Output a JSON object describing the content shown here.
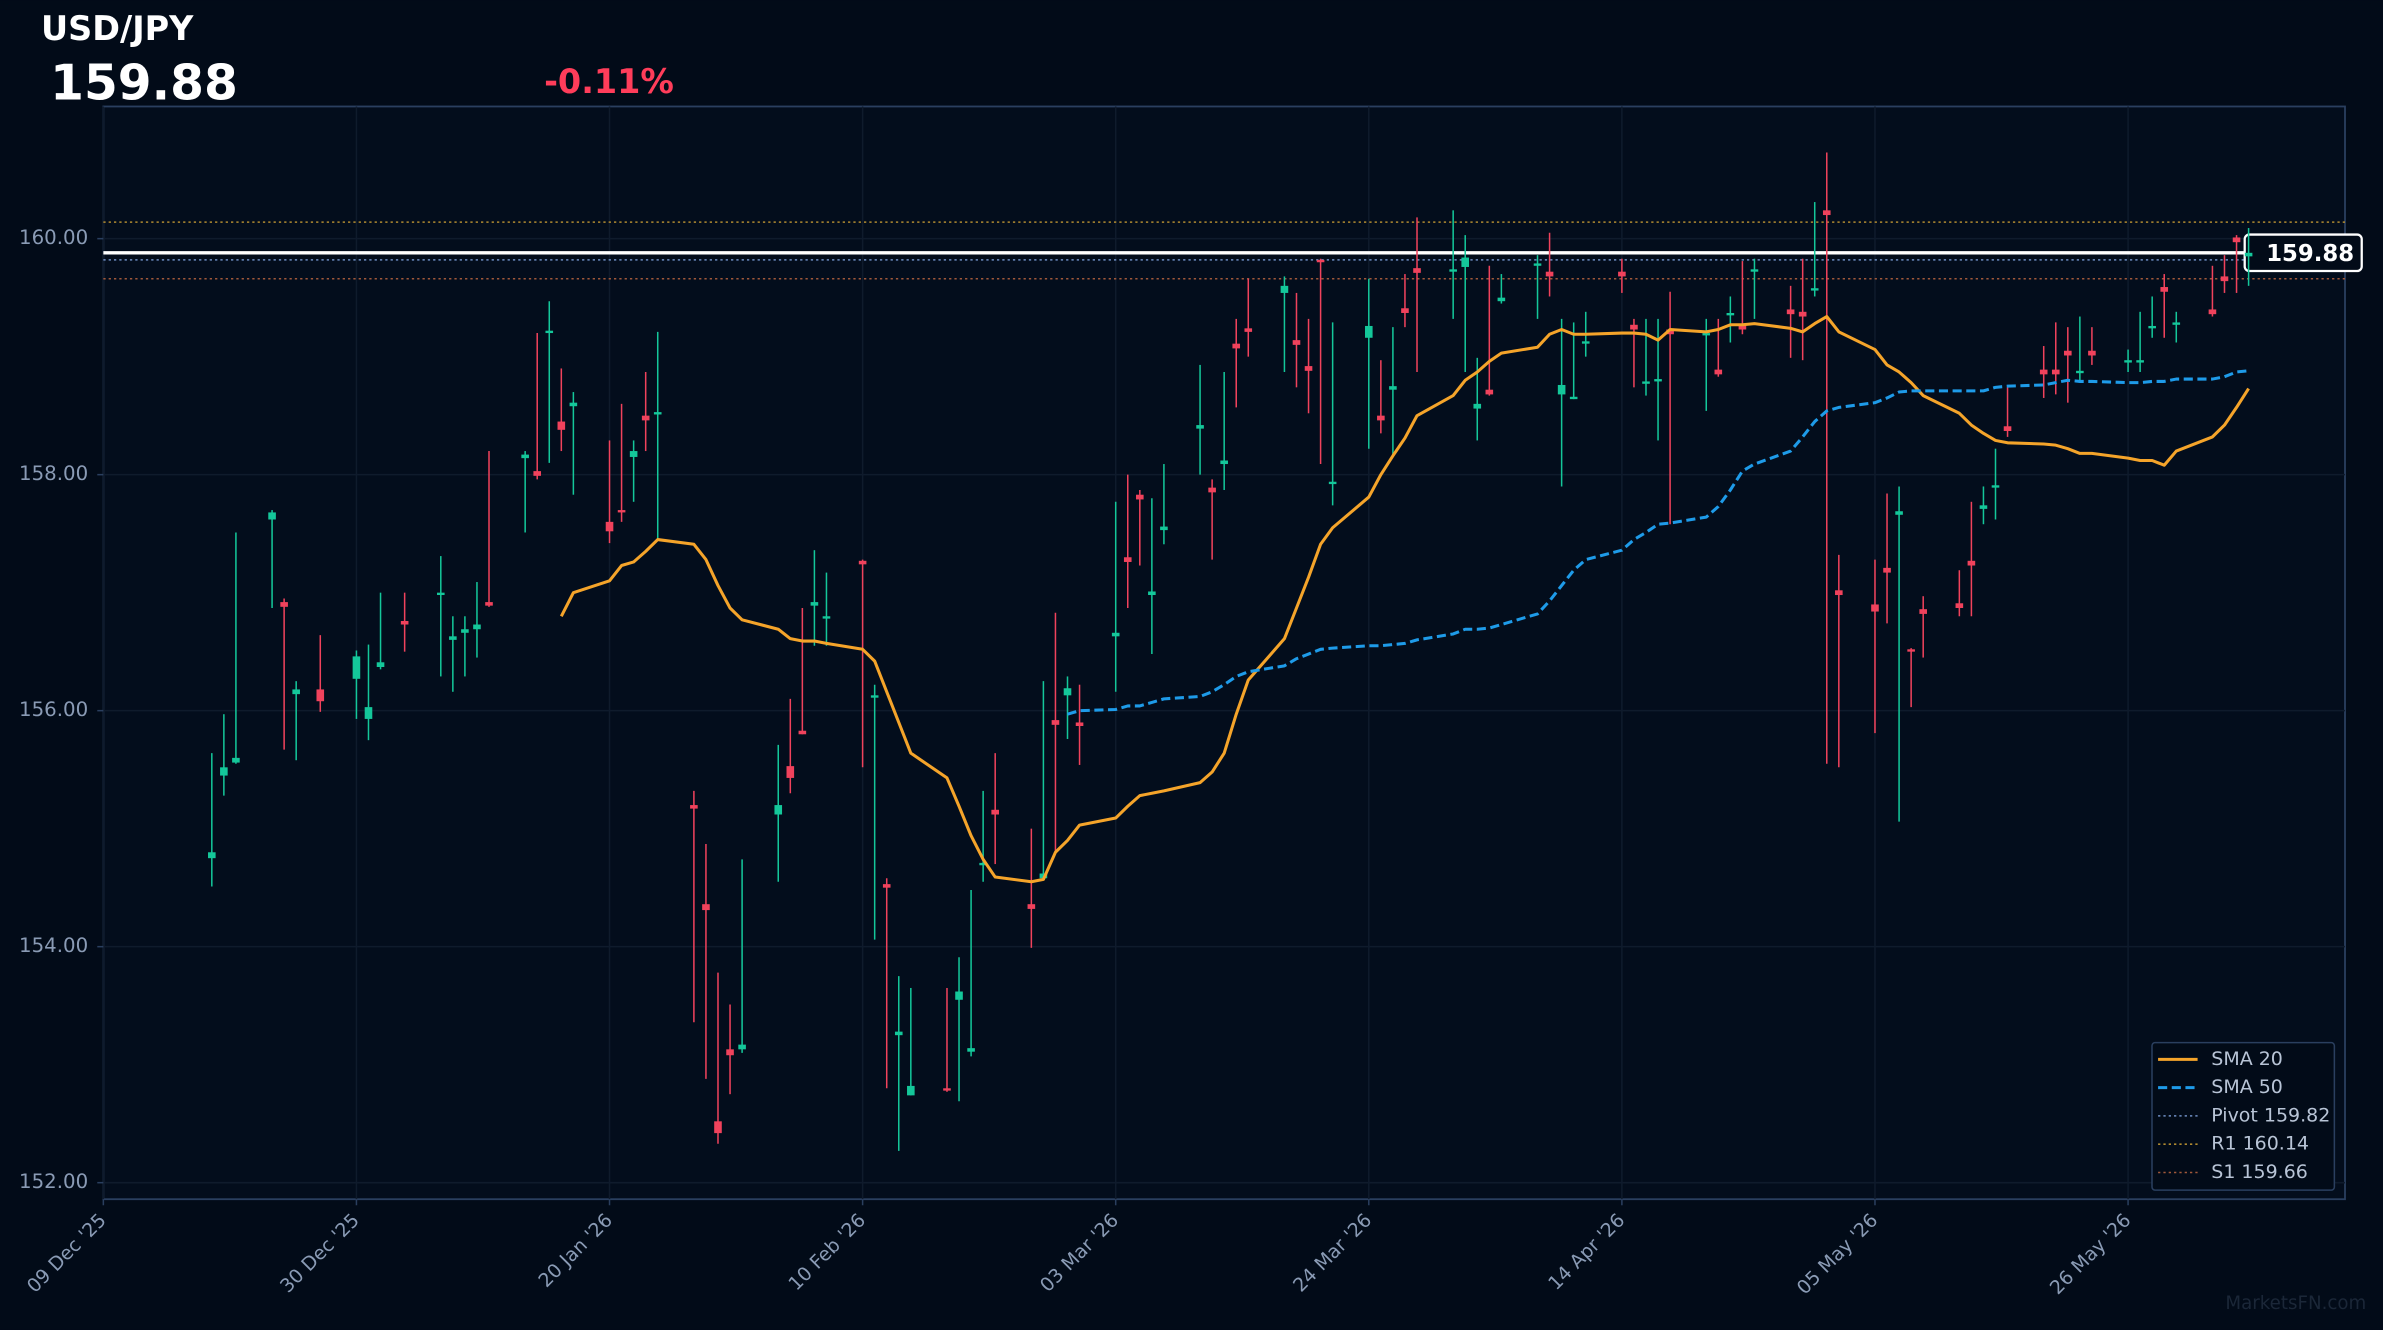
{
  "chart_data": {
    "type": "candlestick",
    "title": "USD/JPY",
    "last_price": 159.88,
    "change": "-0.11%",
    "watermark": "MarketsFN.com",
    "up_color": "#14c79a",
    "down_color": "#f0425c",
    "grid": true,
    "legend": "lower right",
    "xlim": [
      "2025-12-09",
      "2026-06-13"
    ],
    "xticks": [
      {
        "value": "2025-12-09",
        "label": "09 Dec '25"
      },
      {
        "value": "2025-12-30",
        "label": "30 Dec '25"
      },
      {
        "value": "2026-01-20",
        "label": "20 Jan '26"
      },
      {
        "value": "2026-02-10",
        "label": "10 Feb '26"
      },
      {
        "value": "2026-03-03",
        "label": "03 Mar '26"
      },
      {
        "value": "2026-03-24",
        "label": "24 Mar '26"
      },
      {
        "value": "2026-04-14",
        "label": "14 Apr '26"
      },
      {
        "value": "2026-05-05",
        "label": "05 May '26"
      },
      {
        "value": "2026-05-26",
        "label": "26 May '26"
      }
    ],
    "ylim": [
      151.86,
      161.12
    ],
    "yticks": [
      {
        "value": 152,
        "label": "152.00"
      },
      {
        "value": 154,
        "label": "154.00"
      },
      {
        "value": 156,
        "label": "156.00"
      },
      {
        "value": 158,
        "label": "158.00"
      },
      {
        "value": 160,
        "label": "160.00"
      }
    ],
    "candles": {
      "x": [
        "2025-12-18",
        "2025-12-19",
        "2025-12-20",
        "2025-12-23",
        "2025-12-24",
        "2025-12-25",
        "2025-12-27",
        "2025-12-30",
        "2025-12-31",
        "2026-01-01",
        "2026-01-03",
        "2026-01-06",
        "2026-01-07",
        "2026-01-08",
        "2026-01-09",
        "2026-01-10",
        "2026-01-13",
        "2026-01-14",
        "2026-01-15",
        "2026-01-16",
        "2026-01-17",
        "2026-01-20",
        "2026-01-21",
        "2026-01-22",
        "2026-01-23",
        "2026-01-24",
        "2026-01-27",
        "2026-01-28",
        "2026-01-29",
        "2026-01-30",
        "2026-01-31",
        "2026-02-03",
        "2026-02-04",
        "2026-02-05",
        "2026-02-06",
        "2026-02-07",
        "2026-02-10",
        "2026-02-11",
        "2026-02-12",
        "2026-02-13",
        "2026-02-14",
        "2026-02-17",
        "2026-02-18",
        "2026-02-19",
        "2026-02-20",
        "2026-02-21",
        "2026-02-24",
        "2026-02-25",
        "2026-02-26",
        "2026-02-27",
        "2026-02-28",
        "2026-03-03",
        "2026-03-04",
        "2026-03-05",
        "2026-03-06",
        "2026-03-07",
        "2026-03-10",
        "2026-03-11",
        "2026-03-12",
        "2026-03-13",
        "2026-03-14",
        "2026-03-17",
        "2026-03-18",
        "2026-03-19",
        "2026-03-20",
        "2026-03-21",
        "2026-03-24",
        "2026-03-25",
        "2026-03-26",
        "2026-03-27",
        "2026-03-28",
        "2026-03-31",
        "2026-04-01",
        "2026-04-02",
        "2026-04-03",
        "2026-04-04",
        "2026-04-07",
        "2026-04-08",
        "2026-04-09",
        "2026-04-10",
        "2026-04-11",
        "2026-04-14",
        "2026-04-15",
        "2026-04-16",
        "2026-04-17",
        "2026-04-18",
        "2026-04-21",
        "2026-04-22",
        "2026-04-23",
        "2026-04-24",
        "2026-04-25",
        "2026-04-28",
        "2026-04-29",
        "2026-04-30",
        "2026-05-01",
        "2026-05-02",
        "2026-05-05",
        "2026-05-06",
        "2026-05-07",
        "2026-05-08",
        "2026-05-09",
        "2026-05-12",
        "2026-05-13",
        "2026-05-14",
        "2026-05-15",
        "2026-05-16",
        "2026-05-19",
        "2026-05-20",
        "2026-05-21",
        "2026-05-22",
        "2026-05-23",
        "2026-05-26",
        "2026-05-27",
        "2026-05-28",
        "2026-05-29",
        "2026-05-30",
        "2026-06-02",
        "2026-06-03",
        "2026-06-04",
        "2026-06-05"
      ],
      "open": [
        154.75,
        155.45,
        155.56,
        157.62,
        156.92,
        156.14,
        156.18,
        156.27,
        155.93,
        156.37,
        156.76,
        156.98,
        156.6,
        156.66,
        156.69,
        156.92,
        158.14,
        158.03,
        159.2,
        158.45,
        158.58,
        157.6,
        157.7,
        158.15,
        158.5,
        158.51,
        155.2,
        154.36,
        152.52,
        153.13,
        153.13,
        155.12,
        155.53,
        155.83,
        156.89,
        156.78,
        157.27,
        156.11,
        154.53,
        153.25,
        152.74,
        152.8,
        153.55,
        153.11,
        154.69,
        155.16,
        154.36,
        154.58,
        155.92,
        156.13,
        155.9,
        156.63,
        157.3,
        157.83,
        156.98,
        157.53,
        158.39,
        157.89,
        158.09,
        159.11,
        159.24,
        159.54,
        159.14,
        158.92,
        159.82,
        157.92,
        159.16,
        158.5,
        158.72,
        159.41,
        159.75,
        159.72,
        159.76,
        158.56,
        158.72,
        159.47,
        159.77,
        159.72,
        158.68,
        158.64,
        159.11,
        159.72,
        159.27,
        158.77,
        158.79,
        159.23,
        159.18,
        158.89,
        159.35,
        159.27,
        159.72,
        159.4,
        159.38,
        159.56,
        160.24,
        157.02,
        156.9,
        157.21,
        157.66,
        156.52,
        156.86,
        156.91,
        157.27,
        157.71,
        157.89,
        158.41,
        158.89,
        158.89,
        159.05,
        158.86,
        159.05,
        158.95,
        158.95,
        159.24,
        159.59,
        159.27,
        159.4,
        159.68,
        160.01,
        159.85
      ],
      "high": [
        155.64,
        155.97,
        157.51,
        157.7,
        156.95,
        156.25,
        156.64,
        156.51,
        156.56,
        157.0,
        157.0,
        157.31,
        156.8,
        156.8,
        157.09,
        158.2,
        158.2,
        159.2,
        159.47,
        158.9,
        158.7,
        158.29,
        158.6,
        158.29,
        158.87,
        159.21,
        155.32,
        154.87,
        153.78,
        153.51,
        154.74,
        155.71,
        156.1,
        156.87,
        157.36,
        157.17,
        157.28,
        156.22,
        154.58,
        153.75,
        153.65,
        153.65,
        153.91,
        154.48,
        155.32,
        155.64,
        155.0,
        156.25,
        156.83,
        156.29,
        156.22,
        157.77,
        158.0,
        157.87,
        157.8,
        158.09,
        158.93,
        157.96,
        158.87,
        159.32,
        159.66,
        159.68,
        159.54,
        159.32,
        159.83,
        159.29,
        159.66,
        158.97,
        159.25,
        159.7,
        160.18,
        160.24,
        160.03,
        158.99,
        159.77,
        159.7,
        159.86,
        160.05,
        159.32,
        159.29,
        159.38,
        159.83,
        159.32,
        159.32,
        159.32,
        159.55,
        159.32,
        159.32,
        159.51,
        159.81,
        159.83,
        159.6,
        159.83,
        160.31,
        160.73,
        157.32,
        157.28,
        157.84,
        157.9,
        156.53,
        156.97,
        157.19,
        157.77,
        157.9,
        158.22,
        158.74,
        159.09,
        159.29,
        159.25,
        159.34,
        159.25,
        159.06,
        159.38,
        159.51,
        159.7,
        159.38,
        159.77,
        159.86,
        160.03,
        160.09
      ],
      "low": [
        154.51,
        155.28,
        155.55,
        156.87,
        155.67,
        155.58,
        155.99,
        155.93,
        155.75,
        156.35,
        156.5,
        156.29,
        156.16,
        156.29,
        156.45,
        156.88,
        157.51,
        157.96,
        158.1,
        158.2,
        157.83,
        157.42,
        157.6,
        157.77,
        158.2,
        157.45,
        153.36,
        152.88,
        152.33,
        152.75,
        153.1,
        154.55,
        155.3,
        155.8,
        156.55,
        156.55,
        155.52,
        154.06,
        152.8,
        152.27,
        152.74,
        152.77,
        152.69,
        153.07,
        154.55,
        154.7,
        153.99,
        154.57,
        154.8,
        155.76,
        155.54,
        156.16,
        156.87,
        157.23,
        156.48,
        157.41,
        158.0,
        157.28,
        157.87,
        158.57,
        159.0,
        158.87,
        158.74,
        158.52,
        158.09,
        157.74,
        158.22,
        158.35,
        158.16,
        159.25,
        158.87,
        159.32,
        158.87,
        158.29,
        158.67,
        159.45,
        159.32,
        159.51,
        157.9,
        158.64,
        159.0,
        159.54,
        158.74,
        158.67,
        158.29,
        157.58,
        158.54,
        158.83,
        159.12,
        159.19,
        159.32,
        158.99,
        158.97,
        159.51,
        155.55,
        155.52,
        155.81,
        156.74,
        155.06,
        156.03,
        156.45,
        156.8,
        156.8,
        157.58,
        157.62,
        158.32,
        158.65,
        158.68,
        158.61,
        158.8,
        158.93,
        158.87,
        158.87,
        159.16,
        159.16,
        159.12,
        159.34,
        159.54,
        159.54,
        159.6
      ],
      "close": [
        154.8,
        155.52,
        155.6,
        157.68,
        156.88,
        156.18,
        156.08,
        156.46,
        156.03,
        156.41,
        156.73,
        157.0,
        156.63,
        156.69,
        156.73,
        156.89,
        158.17,
        157.99,
        159.22,
        158.38,
        158.61,
        157.52,
        157.68,
        158.2,
        158.46,
        158.53,
        155.17,
        154.31,
        152.42,
        153.08,
        153.17,
        155.2,
        155.43,
        155.8,
        156.92,
        156.8,
        157.24,
        156.13,
        154.5,
        153.28,
        152.82,
        152.78,
        153.62,
        153.14,
        154.71,
        155.12,
        154.32,
        154.62,
        155.88,
        156.19,
        155.87,
        156.66,
        157.26,
        157.79,
        157.01,
        157.56,
        158.42,
        157.85,
        158.12,
        159.07,
        159.21,
        159.6,
        159.1,
        158.88,
        159.8,
        157.94,
        159.26,
        158.46,
        158.75,
        159.37,
        159.71,
        159.74,
        159.84,
        158.6,
        158.68,
        159.5,
        159.79,
        159.68,
        158.76,
        158.66,
        159.13,
        159.68,
        159.23,
        158.79,
        158.81,
        159.19,
        159.2,
        158.85,
        159.37,
        159.23,
        159.74,
        159.36,
        159.34,
        159.58,
        160.2,
        156.98,
        156.84,
        157.17,
        157.69,
        156.5,
        156.82,
        156.87,
        157.23,
        157.74,
        157.91,
        158.37,
        158.85,
        158.85,
        159.01,
        158.88,
        159.01,
        158.97,
        158.97,
        159.26,
        159.55,
        159.29,
        159.36,
        159.64,
        159.97,
        159.88
      ]
    },
    "lines": [
      {
        "name": "SMA 20",
        "color": "#f5a42a",
        "dashed": false,
        "values": [
          null,
          null,
          null,
          null,
          null,
          null,
          null,
          null,
          null,
          null,
          null,
          null,
          null,
          null,
          null,
          null,
          null,
          null,
          null,
          156.8,
          157.0,
          157.1,
          157.23,
          157.26,
          157.35,
          157.45,
          157.41,
          157.28,
          157.06,
          156.87,
          156.77,
          156.69,
          156.61,
          156.59,
          156.59,
          156.57,
          156.52,
          156.42,
          156.16,
          155.9,
          155.64,
          155.43,
          155.19,
          154.94,
          154.74,
          154.59,
          154.55,
          154.57,
          154.8,
          154.9,
          155.03,
          155.09,
          155.19,
          155.28,
          155.3,
          155.32,
          155.39,
          155.48,
          155.64,
          155.97,
          156.26,
          156.61,
          156.87,
          157.13,
          157.41,
          157.55,
          157.81,
          158.0,
          158.16,
          158.31,
          158.5,
          158.67,
          158.8,
          158.87,
          158.96,
          159.03,
          159.08,
          159.19,
          159.23,
          159.19,
          159.19,
          159.2,
          159.2,
          159.19,
          159.14,
          159.23,
          159.21,
          159.23,
          159.27,
          159.27,
          159.28,
          159.24,
          159.21,
          159.28,
          159.34,
          159.21,
          159.06,
          158.93,
          158.87,
          158.78,
          158.67,
          158.52,
          158.42,
          158.35,
          158.29,
          158.27,
          158.26,
          158.25,
          158.22,
          158.18,
          158.18,
          158.14,
          158.12,
          158.12,
          158.08,
          158.2,
          158.32,
          158.42,
          158.57,
          158.73
        ]
      },
      {
        "name": "SMA 50",
        "color": "#1e9be9",
        "dashed": true,
        "values": [
          null,
          null,
          null,
          null,
          null,
          null,
          null,
          null,
          null,
          null,
          null,
          null,
          null,
          null,
          null,
          null,
          null,
          null,
          null,
          null,
          null,
          null,
          null,
          null,
          null,
          null,
          null,
          null,
          null,
          null,
          null,
          null,
          null,
          null,
          null,
          null,
          null,
          null,
          null,
          null,
          null,
          null,
          null,
          null,
          null,
          null,
          null,
          null,
          null,
          155.97,
          156.0,
          156.01,
          156.04,
          156.04,
          156.07,
          156.1,
          156.12,
          156.16,
          156.22,
          156.29,
          156.33,
          156.38,
          156.44,
          156.48,
          156.52,
          156.53,
          156.55,
          156.55,
          156.56,
          156.57,
          156.6,
          156.65,
          156.69,
          156.69,
          156.7,
          156.73,
          156.82,
          156.93,
          157.06,
          157.19,
          157.28,
          157.36,
          157.45,
          157.51,
          157.58,
          157.59,
          157.64,
          157.73,
          157.87,
          158.03,
          158.09,
          158.2,
          158.32,
          158.45,
          158.54,
          158.57,
          158.61,
          158.65,
          158.7,
          158.71,
          158.71,
          158.71,
          158.71,
          158.71,
          158.74,
          158.75,
          158.76,
          158.78,
          158.8,
          158.79,
          158.79,
          158.78,
          158.78,
          158.79,
          158.79,
          158.81,
          158.81,
          158.83,
          158.87,
          158.88
        ]
      }
    ],
    "levels": [
      {
        "name": "Pivot 159.82",
        "value": 159.82,
        "color": "#6f8fc4"
      },
      {
        "name": "R1 160.14",
        "value": 160.14,
        "color": "#b08a30"
      },
      {
        "name": "S1 159.66",
        "value": 159.66,
        "color": "#a0583a"
      }
    ]
  }
}
